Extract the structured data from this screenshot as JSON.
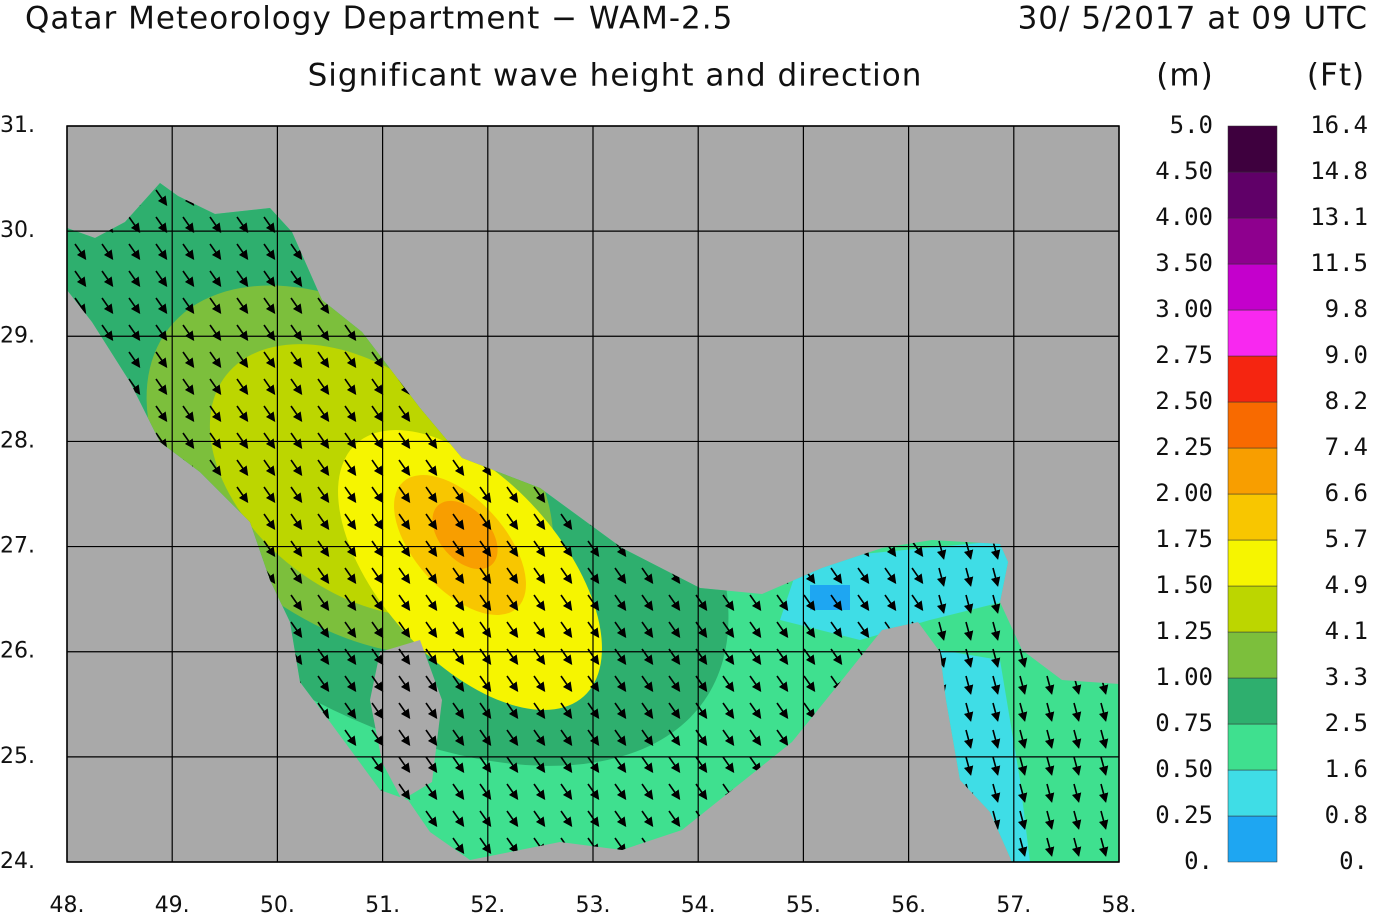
{
  "header": {
    "title": "Qatar Meteorology Department − WAM-2.5",
    "datetime": "30/ 5/2017 at 09 UTC",
    "subtitle": "Significant wave height and direction"
  },
  "map": {
    "xlim": [
      48,
      58
    ],
    "ylim": [
      24,
      31
    ],
    "xticks": [
      {
        "value": 48,
        "label": "48."
      },
      {
        "value": 49,
        "label": "49."
      },
      {
        "value": 50,
        "label": "50."
      },
      {
        "value": 51,
        "label": "51."
      },
      {
        "value": 52,
        "label": "52."
      },
      {
        "value": 53,
        "label": "53."
      },
      {
        "value": 54,
        "label": "54."
      },
      {
        "value": 55,
        "label": "55."
      },
      {
        "value": 56,
        "label": "56."
      },
      {
        "value": 57,
        "label": "57."
      },
      {
        "value": 58,
        "label": "58."
      }
    ],
    "yticks": [
      {
        "value": 24,
        "label": "24."
      },
      {
        "value": 25,
        "label": "25."
      },
      {
        "value": 26,
        "label": "26."
      },
      {
        "value": 27,
        "label": "27."
      },
      {
        "value": 28,
        "label": "28."
      },
      {
        "value": 29,
        "label": "29."
      },
      {
        "value": 30,
        "label": "30."
      },
      {
        "value": 31,
        "label": "31."
      }
    ],
    "land_color": "#a9a9a9",
    "grid_color": "#000000",
    "arrow_color": "#000000"
  },
  "colorbar": {
    "unit_m": "(m)",
    "unit_ft": "(Ft)",
    "m_levels": [
      {
        "value": 0,
        "label": "0."
      },
      0.25,
      {
        "value": 0.5,
        "label": "0.50"
      },
      0.75,
      {
        "value": 1,
        "label": "1.00"
      },
      1.25,
      {
        "value": 1.5,
        "label": "1.50"
      },
      1.75,
      {
        "value": 2,
        "label": "2.00"
      },
      2.25,
      {
        "value": 2.5,
        "label": "2.50"
      },
      2.75,
      {
        "value": 3,
        "label": "3.00"
      },
      {
        "value": 3.5,
        "label": "3.50"
      },
      {
        "value": 4,
        "label": "4.00"
      },
      {
        "value": 4.5,
        "label": "4.50"
      },
      {
        "value": 5,
        "label": "5.0"
      }
    ],
    "ft_levels": [
      {
        "value": 0,
        "label": "0."
      },
      0.8,
      1.6,
      2.5,
      3.3,
      4.1,
      4.9,
      5.7,
      6.6,
      7.4,
      8.2,
      {
        "value": 9,
        "label": "9.0"
      },
      9.8,
      11.5,
      13.1,
      14.8,
      16.4
    ],
    "colors": [
      "#1ea6f2",
      "#3fdde6",
      "#3fe08f",
      "#2eaf6e",
      "#7cbf3c",
      "#bcd600",
      "#f6f500",
      "#f8c600",
      "#f89e00",
      "#f86a00",
      "#f52510",
      "#f828f0",
      "#c400cc",
      "#8e008e",
      "#600068",
      "#3e003e"
    ]
  }
}
